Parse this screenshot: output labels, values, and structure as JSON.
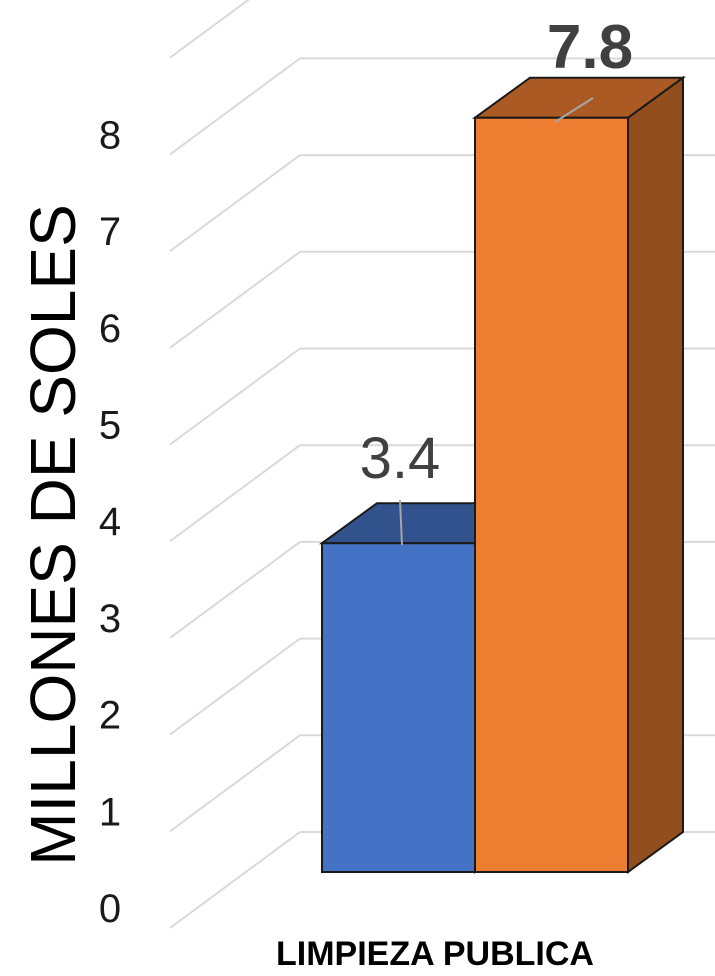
{
  "chart_data": {
    "type": "bar",
    "categories": [
      "LIMPIEZA PUBLICA"
    ],
    "series": [
      {
        "values": [
          3.4
        ],
        "color": "#4472C4"
      },
      {
        "values": [
          7.8
        ],
        "color": "#ED7D31"
      }
    ],
    "data_labels": [
      "3.4",
      "7.8"
    ],
    "ylabel": "MILLONES DE SOLES",
    "xlabel": "",
    "ylim": [
      0,
      9
    ],
    "yticks": [
      "0",
      "1",
      "2",
      "3",
      "4",
      "5",
      "6",
      "7",
      "8"
    ],
    "grid": true,
    "style": "3d-column",
    "legend": "none"
  }
}
